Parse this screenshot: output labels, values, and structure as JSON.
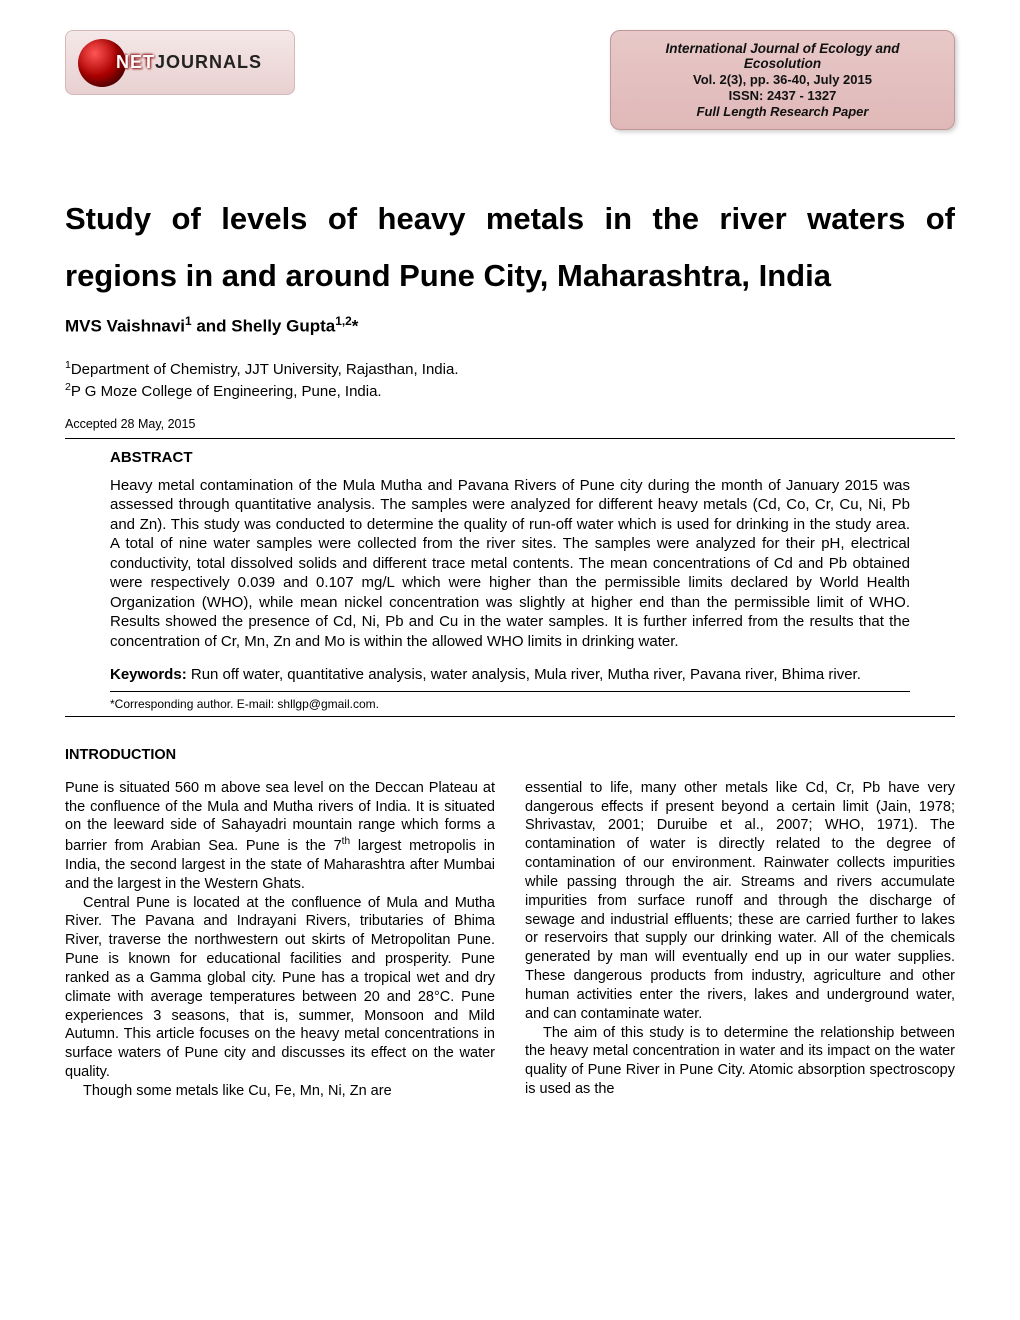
{
  "logo": {
    "net": "NET",
    "journals": "JOURNALS"
  },
  "journal_box": {
    "name": "International Journal of Ecology and Ecosolution",
    "volume": "Vol. 2(3), pp. 36-40, July 2015",
    "issn": "ISSN: 2437 - 1327",
    "type": "Full Length Research Paper"
  },
  "title_line1": "Study of levels of heavy metals in the river waters of",
  "title_line2": "regions in and around Pune City, Maharashtra, India",
  "authors": {
    "a1": "MVS Vaishnavi",
    "sup1": "1",
    "and": " and ",
    "a2": "Shelly Gupta",
    "sup2": "1,2",
    "star": "*"
  },
  "affiliations": {
    "sup1": "1",
    "aff1": "Department of Chemistry, JJT University, Rajasthan, India.",
    "sup2": "2",
    "aff2": "P G Moze College of Engineering, Pune, India."
  },
  "accepted": "Accepted 28 May, 2015",
  "abstract": {
    "heading": "ABSTRACT",
    "text": "Heavy metal contamination of the Mula Mutha and Pavana Rivers of Pune city during the month of January 2015 was assessed through quantitative analysis. The samples were analyzed for different heavy metals (Cd, Co, Cr, Cu, Ni, Pb and Zn). This study was conducted to determine the quality of run-off water which is used for drinking in the study area. A total of nine water samples were collected from the river sites. The samples were analyzed for their pH, electrical conductivity, total dissolved solids and different trace metal contents. The mean concentrations of Cd and Pb obtained were respectively 0.039 and 0.107 mg/L which were higher than the permissible limits declared by World Health Organization (WHO), while mean nickel concentration was slightly at higher end than the permissible limit of WHO. Results showed the presence of Cd, Ni, Pb and Cu in the water samples. It is further inferred from the results that the concentration of Cr, Mn, Zn and Mo is within the allowed WHO limits in drinking water.",
    "keywords_label": "Keywords:",
    "keywords": " Run off water, quantitative analysis, water analysis, Mula river, Mutha river, Pavana river, Bhima river.",
    "corresponding": "*Corresponding author. E-mail: shllgp@gmail.com."
  },
  "intro_heading": "INTRODUCTION",
  "col1": {
    "p1a": "Pune is situated 560 m above sea level on the Deccan Plateau at the confluence of the Mula and Mutha rivers of India. It is situated on the leeward side of Sahayadri mountain range which forms a barrier from Arabian Sea. Pune is the 7",
    "p1sup": "th",
    "p1b": " largest metropolis in India, the second largest in the state of Maharashtra after Mumbai and the largest in the Western Ghats.",
    "p2": "Central Pune is located at the confluence of Mula and Mutha River. The Pavana and Indrayani Rivers, tributaries of Bhima River, traverse the northwestern out skirts of Metropolitan Pune. Pune is known for educational facilities and prosperity. Pune ranked as a Gamma global city. Pune has a tropical wet and dry climate with average temperatures between 20 and 28°C. Pune experiences 3 seasons, that is, summer, Monsoon and Mild Autumn. This article focuses on the heavy metal concentrations in surface waters of Pune city and discusses its effect on the water quality.",
    "p3": "Though some metals like Cu, Fe, Mn, Ni, Zn are"
  },
  "col2": {
    "p1": "essential to life, many other metals like Cd, Cr, Pb have very dangerous effects if present beyond a certain limit (Jain, 1978; Shrivastav, 2001; Duruibe et al., 2007; WHO, 1971). The contamination of water is directly related to the degree of contamination of our environment. Rainwater collects impurities while passing through the air. Streams and rivers accumulate impurities from surface runoff and through the discharge of sewage and industrial effluents; these are carried further to lakes or reservoirs that supply our drinking water. All of the chemicals generated by man will eventually end up in our water supplies. These dangerous products from industry, agriculture and other human activities enter the rivers, lakes and underground water, and can contaminate water.",
    "p2": "The aim of this study is to determine the relationship between the heavy metal concentration in water and its impact on the water quality of Pune River in Pune City. Atomic absorption spectroscopy is used as the"
  }
}
